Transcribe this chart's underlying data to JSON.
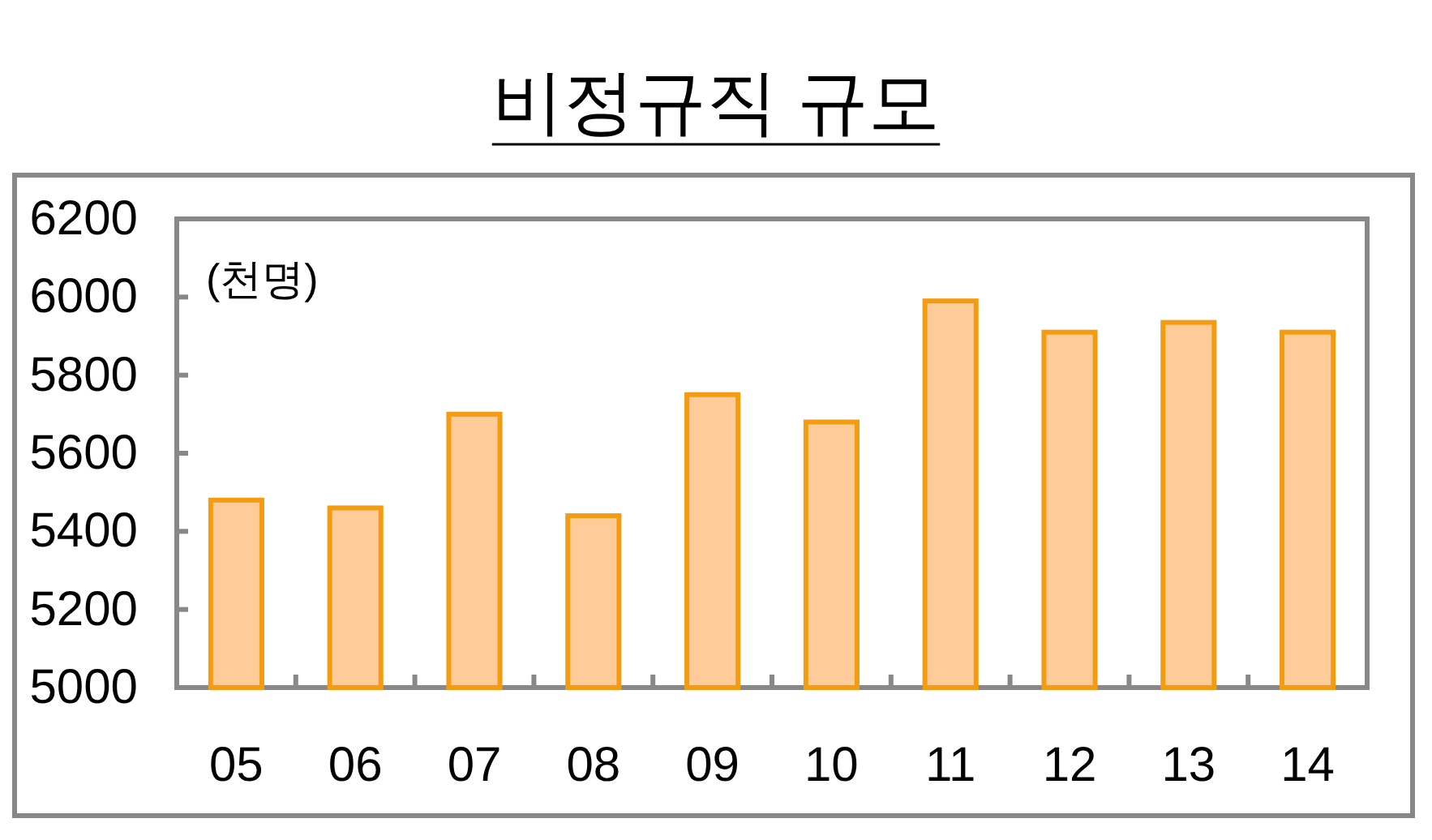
{
  "chart_data": {
    "type": "bar",
    "title": "비정규직 규모",
    "categories": [
      "05",
      "06",
      "07",
      "08",
      "09",
      "10",
      "11",
      "12",
      "13",
      "14"
    ],
    "values": [
      5480,
      5460,
      5700,
      5440,
      5750,
      5680,
      5990,
      5910,
      5935,
      5910
    ],
    "color": "#ffcc99",
    "ylim": [
      5000,
      6200
    ],
    "yticks": [
      5000,
      5200,
      5400,
      5600,
      5800,
      6000,
      6200
    ],
    "annotations": [
      "(천명)"
    ]
  }
}
